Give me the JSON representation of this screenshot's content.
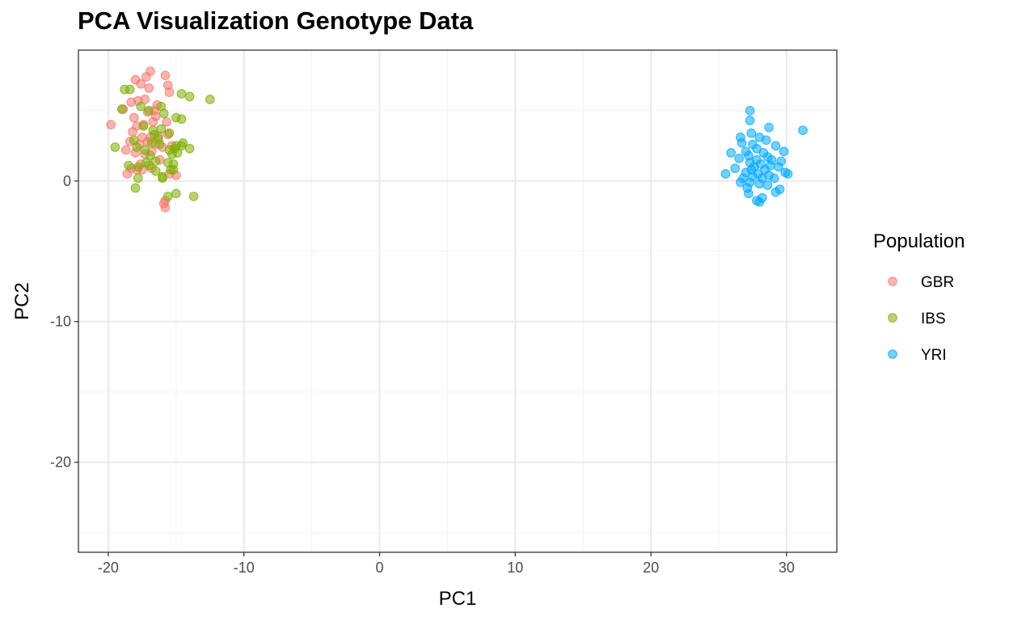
{
  "chart_data": {
    "type": "scatter",
    "title": "PCA Visualization Genotype Data",
    "xlabel": "PC1",
    "ylabel": "PC2",
    "xlim": [
      -22.2,
      33.7
    ],
    "ylim": [
      -26.4,
      9.3
    ],
    "x_ticks": [
      -20,
      -10,
      0,
      10,
      20,
      30
    ],
    "y_ticks": [
      0,
      -10,
      -20
    ],
    "x_tick_labels": [
      "-20",
      "-10",
      "0",
      "10",
      "20",
      "30"
    ],
    "y_tick_labels": [
      "0",
      "-10",
      "-20"
    ],
    "grid": true,
    "legend": {
      "title": "Population",
      "position": "right"
    },
    "series": [
      {
        "name": "GBR",
        "color": "#F8766D",
        "points": [
          [
            -19.8,
            4.0
          ],
          [
            -18.9,
            5.1
          ],
          [
            -18.3,
            5.6
          ],
          [
            -18.0,
            7.2
          ],
          [
            -17.6,
            6.9
          ],
          [
            -17.2,
            7.4
          ],
          [
            -16.9,
            7.8
          ],
          [
            -17.0,
            6.6
          ],
          [
            -17.3,
            5.8
          ],
          [
            -17.8,
            5.7
          ],
          [
            -16.4,
            5.4
          ],
          [
            -17.1,
            4.9
          ],
          [
            -16.5,
            4.6
          ],
          [
            -18.1,
            4.5
          ],
          [
            -17.9,
            3.9
          ],
          [
            -17.4,
            4.0
          ],
          [
            -16.7,
            4.2
          ],
          [
            -15.7,
            4.2
          ],
          [
            -18.2,
            3.5
          ],
          [
            -17.5,
            3.1
          ],
          [
            -16.9,
            3.1
          ],
          [
            -16.3,
            3.2
          ],
          [
            -15.6,
            3.3
          ],
          [
            -18.4,
            2.8
          ],
          [
            -17.7,
            2.6
          ],
          [
            -17.1,
            2.8
          ],
          [
            -16.5,
            2.6
          ],
          [
            -16.0,
            2.4
          ],
          [
            -15.3,
            2.5
          ],
          [
            -18.0,
            2.0
          ],
          [
            -17.3,
            1.9
          ],
          [
            -16.8,
            2.1
          ],
          [
            -17.6,
            1.2
          ],
          [
            -16.2,
            1.5
          ],
          [
            -18.6,
            0.5
          ],
          [
            -17.9,
            0.8
          ],
          [
            -17.5,
            0.8
          ],
          [
            -18.3,
            0.9
          ],
          [
            -16.8,
            0.9
          ],
          [
            -15.5,
            0.5
          ],
          [
            -15.0,
            0.4
          ],
          [
            -15.8,
            -1.4
          ],
          [
            -15.9,
            -1.6
          ],
          [
            -15.8,
            -1.9
          ],
          [
            -15.8,
            7.5
          ],
          [
            -15.6,
            6.8
          ],
          [
            -15.5,
            6.3
          ],
          [
            -18.7,
            2.2
          ],
          [
            -16.6,
            5.0
          ]
        ]
      },
      {
        "name": "IBS",
        "color": "#7CAE00",
        "points": [
          [
            -19.5,
            2.4
          ],
          [
            -18.8,
            6.5
          ],
          [
            -18.4,
            6.5
          ],
          [
            -19.0,
            5.1
          ],
          [
            -17.6,
            5.3
          ],
          [
            -17.0,
            5.0
          ],
          [
            -16.1,
            5.3
          ],
          [
            -15.9,
            4.8
          ],
          [
            -14.6,
            6.2
          ],
          [
            -14.0,
            6.0
          ],
          [
            -12.5,
            5.8
          ],
          [
            -15.0,
            4.5
          ],
          [
            -14.6,
            4.4
          ],
          [
            -17.4,
            3.9
          ],
          [
            -16.7,
            3.6
          ],
          [
            -16.1,
            3.7
          ],
          [
            -15.5,
            3.4
          ],
          [
            -17.9,
            2.4
          ],
          [
            -17.3,
            2.2
          ],
          [
            -16.8,
            2.7
          ],
          [
            -16.2,
            2.6
          ],
          [
            -15.5,
            2.2
          ],
          [
            -15.0,
            2.5
          ],
          [
            -14.5,
            2.7
          ],
          [
            -14.0,
            2.3
          ],
          [
            -15.3,
            1.9
          ],
          [
            -14.9,
            2.0
          ],
          [
            -17.2,
            1.3
          ],
          [
            -16.5,
            1.4
          ],
          [
            -15.6,
            1.3
          ],
          [
            -15.2,
            1.2
          ],
          [
            -18.5,
            1.1
          ],
          [
            -17.8,
            1.0
          ],
          [
            -17.0,
            1.1
          ],
          [
            -15.4,
            0.8
          ],
          [
            -16.5,
            0.7
          ],
          [
            -15.2,
            0.8
          ],
          [
            -17.8,
            0.2
          ],
          [
            -16.0,
            0.3
          ],
          [
            -18.0,
            -0.5
          ],
          [
            -15.0,
            -0.9
          ],
          [
            -15.6,
            -1.1
          ],
          [
            -13.7,
            -1.1
          ],
          [
            -18.1,
            2.9
          ],
          [
            -16.6,
            3.3
          ],
          [
            -16.3,
            3.0
          ],
          [
            -14.6,
            2.5
          ],
          [
            -16.9,
            1.8
          ],
          [
            -15.1,
            2.3
          ],
          [
            -16.0,
            0.2
          ]
        ]
      },
      {
        "name": "YRI",
        "color": "#00A9FF",
        "points": [
          [
            27.3,
            5.0
          ],
          [
            27.3,
            4.3
          ],
          [
            28.7,
            3.8
          ],
          [
            27.4,
            3.4
          ],
          [
            26.6,
            3.1
          ],
          [
            28.0,
            3.1
          ],
          [
            28.5,
            2.9
          ],
          [
            26.7,
            2.7
          ],
          [
            27.5,
            2.6
          ],
          [
            29.2,
            2.5
          ],
          [
            27.8,
            2.3
          ],
          [
            27.0,
            2.1
          ],
          [
            28.3,
            2.0
          ],
          [
            29.8,
            2.1
          ],
          [
            25.9,
            2.0
          ],
          [
            27.2,
            1.8
          ],
          [
            28.6,
            1.7
          ],
          [
            26.5,
            1.6
          ],
          [
            27.8,
            1.5
          ],
          [
            28.9,
            1.5
          ],
          [
            29.6,
            1.4
          ],
          [
            27.3,
            1.3
          ],
          [
            28.1,
            1.2
          ],
          [
            27.6,
            1.0
          ],
          [
            28.8,
            1.1
          ],
          [
            29.4,
            1.0
          ],
          [
            26.2,
            0.9
          ],
          [
            27.4,
            0.8
          ],
          [
            28.4,
            0.8
          ],
          [
            29.9,
            0.6
          ],
          [
            27.0,
            0.6
          ],
          [
            27.9,
            0.5
          ],
          [
            25.5,
            0.5
          ],
          [
            28.7,
            0.4
          ],
          [
            30.1,
            0.5
          ],
          [
            26.8,
            0.2
          ],
          [
            27.5,
            0.3
          ],
          [
            28.2,
            0.2
          ],
          [
            29.1,
            0.2
          ],
          [
            26.6,
            -0.1
          ],
          [
            27.3,
            -0.1
          ],
          [
            28.0,
            -0.2
          ],
          [
            28.6,
            -0.3
          ],
          [
            27.1,
            -0.5
          ],
          [
            29.5,
            -0.6
          ],
          [
            29.2,
            -0.8
          ],
          [
            27.2,
            -0.9
          ],
          [
            28.2,
            -1.2
          ],
          [
            28.0,
            -1.5
          ],
          [
            27.8,
            -1.4
          ],
          [
            31.2,
            3.6
          ]
        ]
      }
    ]
  }
}
